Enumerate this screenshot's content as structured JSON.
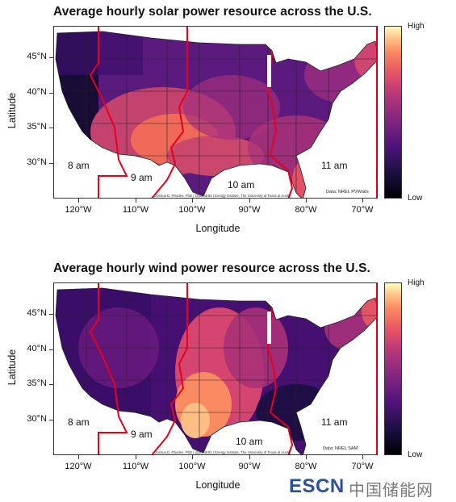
{
  "colors": {
    "scale_low": "#000004",
    "scale_high": "#fcfdbf",
    "timezone_line": "#e8001c",
    "state_border": "#222222"
  },
  "scale": {
    "type": "magma colormap",
    "high_label": "High",
    "low_label": "Low"
  },
  "axes": {
    "ylabel": "Latitude",
    "xlabel": "Longitude",
    "yticks": [
      "45°N",
      "40°N",
      "35°N",
      "30°N"
    ],
    "xticks": [
      "120°W",
      "110°W",
      "100°W",
      "90°W",
      "80°W",
      "70°W"
    ]
  },
  "timezones": [
    "8 am",
    "9 am",
    "10 am",
    "11 am"
  ],
  "maps": [
    {
      "title": "Average hourly solar power resource across the U.S.",
      "credit": "Joshua D. Rhodes, PhD | @joshdr83 | Energy Institute, The University of Texas at Austin",
      "source": "Data: NREL PVWatts",
      "pattern": "solar"
    },
    {
      "title": "Average hourly wind power resource across the U.S.",
      "credit": "Joshua D. Rhodes, PhD | @joshdr83 | Energy Institute, The University of Texas at Austin",
      "source": "Data: NREL SAM",
      "pattern": "wind"
    }
  ],
  "watermark": {
    "brand": "ESCN",
    "cn": "中国储能网"
  }
}
